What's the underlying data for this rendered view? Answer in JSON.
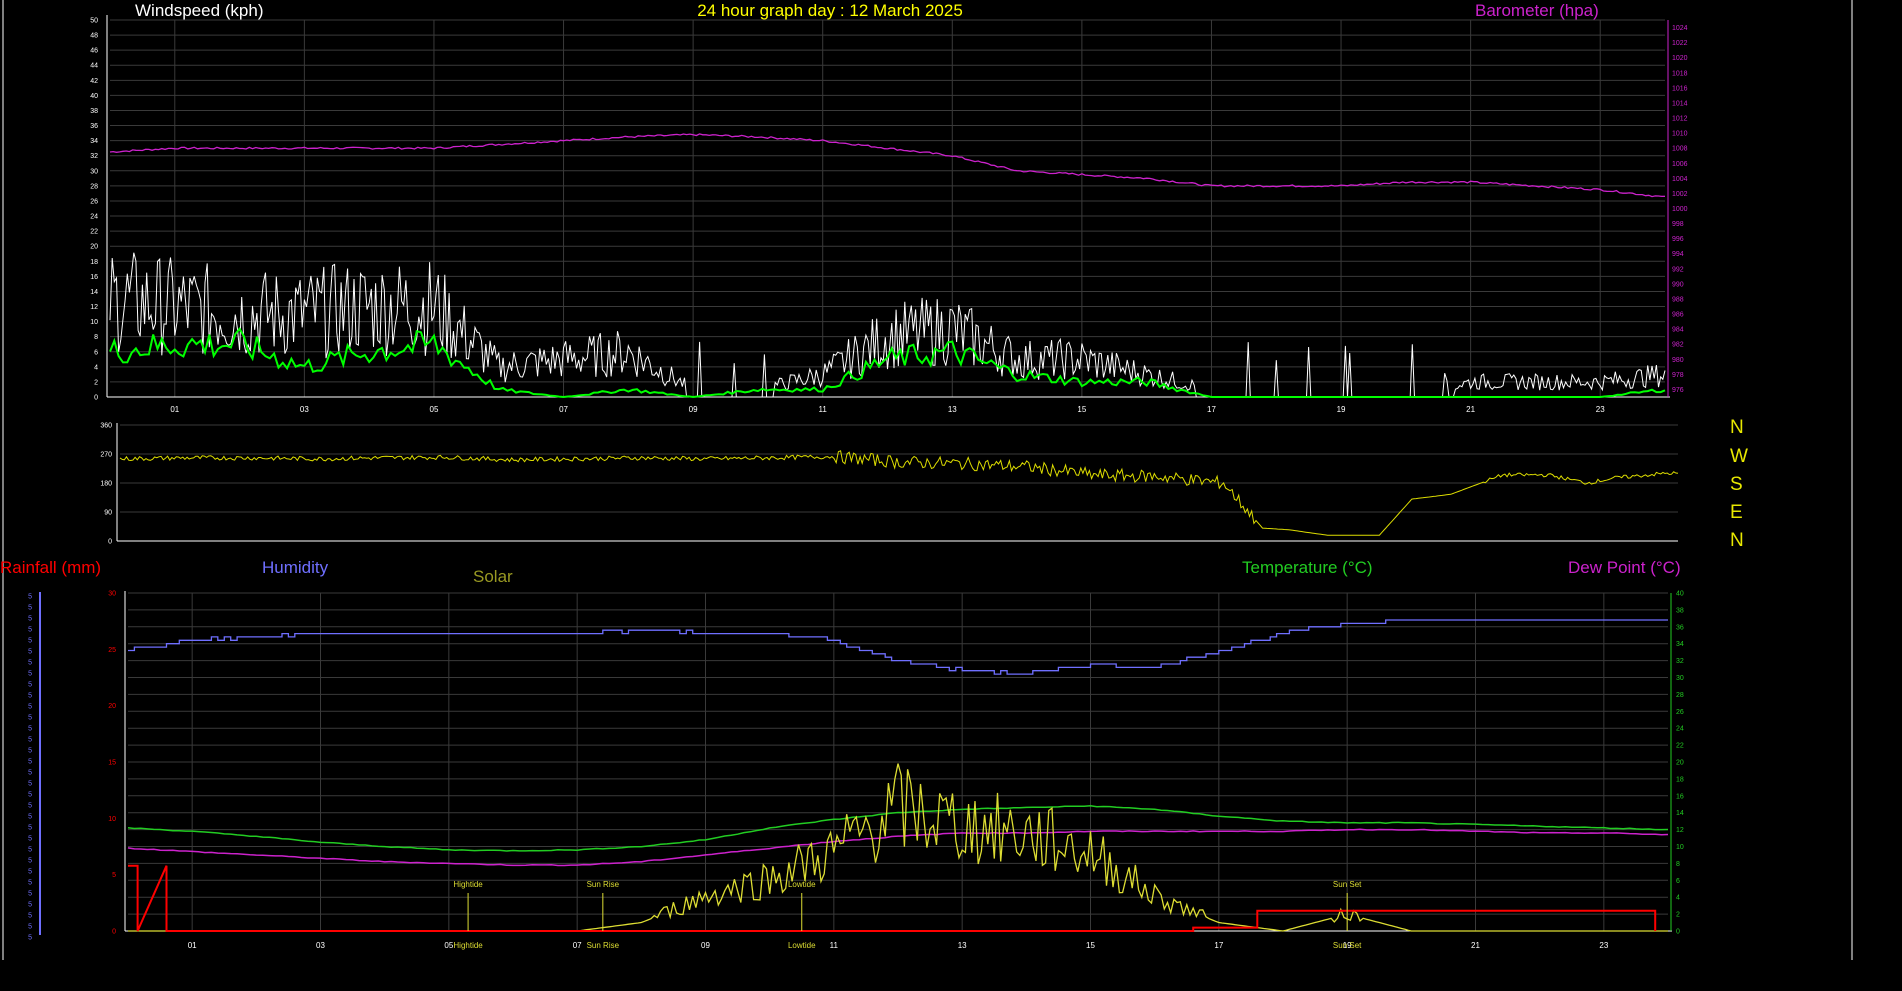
{
  "page": {
    "title": "24 hour graph day : 12 March 2025"
  },
  "panels": {
    "top": {
      "left_title": "Windspeed (kph)",
      "right_title": "Barometer (hpa)",
      "left_ticks": [
        "0",
        "2",
        "4",
        "6",
        "8",
        "10",
        "12",
        "14",
        "16",
        "18",
        "20",
        "22",
        "24",
        "26",
        "28",
        "30",
        "32",
        "34",
        "36",
        "38",
        "40",
        "42",
        "44",
        "46",
        "48",
        "50"
      ],
      "right_ticks": [
        "976",
        "978",
        "980",
        "982",
        "984",
        "986",
        "988",
        "990",
        "992",
        "994",
        "996",
        "998",
        "1000",
        "1002",
        "1004",
        "1006",
        "1008",
        "1010",
        "1012",
        "1014",
        "1016",
        "1018",
        "1020",
        "1022",
        "1024"
      ],
      "hour_labels": [
        "01",
        "03",
        "05",
        "07",
        "09",
        "11",
        "13",
        "15",
        "17",
        "19",
        "21",
        "23"
      ]
    },
    "middle": {
      "ticks": [
        "0",
        "90",
        "180",
        "270",
        "360"
      ],
      "compass": [
        "N",
        "W",
        "S",
        "E",
        "N"
      ]
    },
    "bottom": {
      "rain_title": "Rainfall (mm)",
      "humidity_title": "Humidity",
      "solar_title": "Solar",
      "temperature_title": "Temperature (°C)",
      "dewpoint_title": "Dew Point (°C)",
      "rain_ticks": [
        "0",
        "5",
        "10",
        "15",
        "20",
        "25",
        "30"
      ],
      "temp_ticks": [
        "0",
        "2",
        "4",
        "6",
        "8",
        "10",
        "12",
        "14",
        "16",
        "18",
        "20",
        "22",
        "24",
        "26",
        "28",
        "30",
        "32",
        "34",
        "36",
        "38",
        "40"
      ],
      "humidity_ticks": [
        "5",
        "5",
        "5",
        "5",
        "5",
        "5",
        "5",
        "5",
        "5",
        "5",
        "5",
        "5",
        "5",
        "5",
        "5",
        "5",
        "5",
        "5",
        "5",
        "5",
        "5",
        "5",
        "5",
        "5",
        "5",
        "5",
        "5",
        "5",
        "5",
        "5",
        "5",
        "5"
      ],
      "hour_labels": [
        "01",
        "03",
        "05",
        "07",
        "09",
        "11",
        "13",
        "15",
        "17",
        "19",
        "21",
        "23"
      ],
      "events": [
        {
          "label": "Hightide",
          "hour": 5.3
        },
        {
          "label": "Sun Rise",
          "hour": 7.4
        },
        {
          "label": "Lowtide",
          "hour": 10.5
        },
        {
          "label": "Sun Set",
          "hour": 19.0
        }
      ]
    }
  },
  "colors": {
    "background": "#000000",
    "grid": "#3a3a3a",
    "title": "#ffff00",
    "wind": "#ffffff",
    "wind_avg": "#00ff00",
    "barometer": "#cc22cc",
    "direction": "#dddd00",
    "rain": "#ff0000",
    "humidity": "#6f6fff",
    "solar": "#dddd33",
    "temperature": "#22cc22",
    "dewpoint": "#cc22cc",
    "solar_title": "#999922"
  },
  "chart_data": [
    {
      "type": "line",
      "title": "24 hour graph day : 12 March 2025",
      "xlabel": "",
      "ylabel": "Windspeed (kph)",
      "ylim": [
        0,
        50
      ],
      "y2label": "Barometer (hpa)",
      "y2lim": [
        975,
        1025
      ],
      "x": [
        0,
        1,
        2,
        3,
        4,
        5,
        6,
        7,
        8,
        9,
        10,
        11,
        12,
        13,
        14,
        15,
        16,
        17,
        18,
        19,
        20,
        21,
        22,
        23,
        24
      ],
      "series": [
        {
          "name": "Windspeed (kph)",
          "axis": "left",
          "values": [
            13,
            12,
            11,
            11,
            12,
            12,
            4,
            5,
            6,
            1,
            1,
            3,
            8,
            9,
            5,
            5,
            3,
            1,
            0,
            0,
            0,
            2,
            2,
            2,
            3
          ]
        },
        {
          "name": "",
          "axis": "left",
          "values": [
            6,
            7,
            7,
            4,
            6,
            7,
            1,
            0,
            1,
            0,
            1,
            1,
            5,
            6,
            3,
            2,
            2,
            0,
            0,
            0,
            0,
            0,
            0,
            0,
            1
          ]
        },
        {
          "name": "Barometer (hpa)",
          "axis": "right",
          "values": [
            1007.5,
            1008,
            1008,
            1008,
            1008,
            1008,
            1008.5,
            1009,
            1009.5,
            1009.8,
            1009.5,
            1009,
            1008,
            1007,
            1005,
            1004.5,
            1004,
            1003,
            1003,
            1003,
            1003.5,
            1003.5,
            1003,
            1002.5,
            1001.5
          ]
        }
      ]
    },
    {
      "type": "line",
      "ylim": [
        0,
        360
      ],
      "x": [
        0,
        1,
        2,
        3,
        4,
        5,
        6,
        7,
        8,
        9,
        10,
        11,
        12,
        13,
        14,
        15,
        16,
        17,
        17.6,
        18,
        18.6,
        19.4,
        19.9,
        20.5,
        21.3,
        22,
        22.6,
        23,
        23.8
      ],
      "series": [
        {
          "name": "",
          "values": [
            255,
            258,
            258,
            255,
            258,
            260,
            252,
            255,
            258,
            255,
            258,
            262,
            245,
            240,
            230,
            205,
            200,
            180,
            40,
            35,
            18,
            18,
            130,
            145,
            205,
            205,
            180,
            195,
            210
          ]
        }
      ]
    },
    {
      "type": "line",
      "series_rain_ylim": [
        0,
        30
      ],
      "series_temp_ylim": [
        0,
        40
      ],
      "x": [
        0,
        1,
        2,
        3,
        4,
        5,
        6,
        7,
        8,
        9,
        10,
        11,
        12,
        13,
        14,
        15,
        16,
        17,
        18,
        19,
        20,
        21,
        22,
        23,
        24
      ],
      "series": [
        {
          "name": "Humidity",
          "axis": "humidity",
          "values": [
            83,
            86,
            87,
            88,
            88,
            88,
            88,
            88,
            89,
            88,
            88,
            86,
            80,
            77,
            76,
            79,
            78,
            83,
            88,
            91,
            92,
            92,
            92,
            92,
            92
          ]
        },
        {
          "name": "Temperature (°C)",
          "axis": "temp",
          "values": [
            12.2,
            11.8,
            11.2,
            10.5,
            10,
            9.6,
            9.5,
            9.6,
            10,
            10.8,
            12.2,
            13.2,
            14,
            14.4,
            14.6,
            14.8,
            14.4,
            13.6,
            13,
            12.8,
            12.8,
            12.6,
            12.4,
            12.2,
            12
          ]
        },
        {
          "name": "Dew Point (°C)",
          "axis": "temp",
          "values": [
            9.8,
            9.4,
            9,
            8.6,
            8.2,
            8,
            7.8,
            7.8,
            8.2,
            9,
            9.8,
            10.6,
            11.2,
            11.6,
            11.6,
            11.8,
            11.8,
            11.8,
            11.8,
            12,
            12,
            11.8,
            11.6,
            11.6,
            11.4
          ]
        },
        {
          "name": "Solar",
          "axis": "temp",
          "values": [
            0,
            0,
            0,
            0,
            0,
            0,
            0,
            0,
            1,
            4,
            6,
            9,
            14,
            12,
            11,
            9,
            4,
            1,
            0,
            2,
            0,
            0,
            0,
            0,
            0
          ]
        },
        {
          "name": "Rainfall (mm)",
          "axis": "rain",
          "values": [
            5.8,
            0,
            0,
            0,
            0,
            0,
            0,
            0,
            0,
            0,
            0,
            0,
            0,
            0,
            0,
            0,
            0,
            0.3,
            1.8,
            1.8,
            1.8,
            1.8,
            1.8,
            1.8,
            1.8
          ]
        }
      ]
    }
  ]
}
